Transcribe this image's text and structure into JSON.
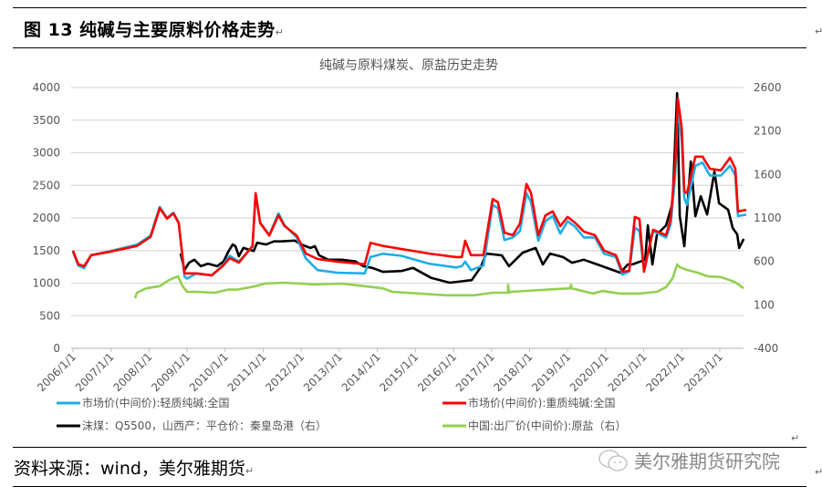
{
  "header": {
    "figure_title": "图 13  纯碱与主要原料价格走势"
  },
  "footer": {
    "source": "资料来源：wind，美尔雅期货",
    "watermark": "美尔雅期货研究院"
  },
  "colors": {
    "light": "#1FADE6",
    "heavy": "#FF0000",
    "coal": "#000000",
    "salt": "#92D050",
    "grid": "#D9D9D9"
  },
  "chart_data": {
    "type": "line",
    "title": "纯碱与原料煤炭、原盐历史走势",
    "xlabel": "",
    "ylabel": "",
    "y2label": "",
    "x_ticks": [
      "2006/1/1",
      "2007/1/1",
      "2008/1/1",
      "2009/1/1",
      "2010/1/1",
      "2011/1/1",
      "2012/1/1",
      "2013/1/1",
      "2014/1/1",
      "2015/1/1",
      "2016/1/1",
      "2017/1/1",
      "2018/1/1",
      "2019/1/1",
      "2020/1/1",
      "2021/1/1",
      "2022/1/1",
      "2023/1/1"
    ],
    "xlim": [
      2006,
      2023.7
    ],
    "ylim": [
      0,
      4000
    ],
    "y_ticks": [
      0,
      500,
      1000,
      1500,
      2000,
      2500,
      3000,
      3500,
      4000
    ],
    "y2lim": [
      -400,
      2600
    ],
    "y2_ticks": [
      -400,
      100,
      600,
      1100,
      1600,
      2100,
      2600
    ],
    "grid": true,
    "legend_position": "bottom",
    "series": [
      {
        "name": "市场价(中间价):轻质纯碱:全国",
        "axis": "left",
        "color": "#1FADE6",
        "x": [
          2006.0,
          2006.14,
          2006.29,
          2006.48,
          2006.96,
          2007.68,
          2008.04,
          2008.28,
          2008.47,
          2008.64,
          2008.78,
          2008.93,
          2009.0,
          2009.24,
          2009.65,
          2009.93,
          2010.12,
          2010.36,
          2010.72,
          2010.8,
          2010.92,
          2011.16,
          2011.4,
          2011.56,
          2011.88,
          2012.12,
          2012.43,
          2012.95,
          2013.67,
          2013.82,
          2014.15,
          2014.63,
          2015.35,
          2016.07,
          2016.22,
          2016.31,
          2016.46,
          2016.79,
          2017.03,
          2017.17,
          2017.34,
          2017.56,
          2017.75,
          2017.92,
          2018.04,
          2018.23,
          2018.42,
          2018.61,
          2018.81,
          2019.0,
          2019.19,
          2019.43,
          2019.72,
          2019.96,
          2020.27,
          2020.44,
          2020.62,
          2020.77,
          2020.89,
          2021.01,
          2021.25,
          2021.59,
          2021.71,
          2021.83,
          2021.9,
          2022.0,
          2022.07,
          2022.14,
          2022.36,
          2022.55,
          2022.74,
          2023.03,
          2023.27,
          2023.41,
          2023.48,
          2023.7
        ],
        "y": [
          1480,
          1270,
          1230,
          1430,
          1490,
          1590,
          1730,
          2170,
          2000,
          2080,
          1930,
          1100,
          1070,
          1150,
          1120,
          1270,
          1420,
          1330,
          1560,
          2370,
          1930,
          1740,
          2070,
          1890,
          1700,
          1380,
          1200,
          1160,
          1150,
          1400,
          1450,
          1420,
          1300,
          1240,
          1260,
          1330,
          1200,
          1270,
          2200,
          2150,
          1660,
          1700,
          1800,
          2380,
          2240,
          1650,
          1950,
          2030,
          1760,
          1950,
          1870,
          1700,
          1700,
          1450,
          1400,
          1130,
          1180,
          1850,
          1800,
          1200,
          1800,
          1700,
          1900,
          2650,
          3700,
          3200,
          2300,
          2200,
          2800,
          2850,
          2650,
          2650,
          2800,
          2650,
          2030,
          2050
        ]
      },
      {
        "name": "市场价(中间价):重质纯碱:全国",
        "axis": "left",
        "color": "#FF0000",
        "x": [
          2006.0,
          2006.14,
          2006.29,
          2006.48,
          2006.96,
          2007.68,
          2008.04,
          2008.28,
          2008.47,
          2008.64,
          2008.78,
          2008.93,
          2009.24,
          2009.65,
          2009.93,
          2010.12,
          2010.36,
          2010.72,
          2010.8,
          2010.92,
          2011.16,
          2011.4,
          2011.56,
          2011.88,
          2012.12,
          2012.43,
          2012.95,
          2013.67,
          2013.82,
          2014.15,
          2014.63,
          2015.35,
          2016.07,
          2016.22,
          2016.31,
          2016.46,
          2016.79,
          2017.03,
          2017.17,
          2017.34,
          2017.56,
          2017.75,
          2017.92,
          2018.04,
          2018.23,
          2018.42,
          2018.61,
          2018.81,
          2019.0,
          2019.19,
          2019.43,
          2019.72,
          2019.96,
          2020.27,
          2020.44,
          2020.62,
          2020.77,
          2020.89,
          2021.01,
          2021.25,
          2021.59,
          2021.71,
          2021.83,
          2021.9,
          2022.0,
          2022.07,
          2022.14,
          2022.36,
          2022.55,
          2022.74,
          2023.03,
          2023.27,
          2023.41,
          2023.48,
          2023.7
        ],
        "y": [
          1500,
          1290,
          1260,
          1430,
          1480,
          1570,
          1710,
          2150,
          1990,
          2070,
          1920,
          1150,
          1150,
          1120,
          1260,
          1385,
          1315,
          1570,
          2380,
          1920,
          1730,
          2040,
          1875,
          1730,
          1455,
          1370,
          1330,
          1290,
          1620,
          1570,
          1525,
          1455,
          1400,
          1400,
          1650,
          1430,
          1430,
          2290,
          2240,
          1775,
          1735,
          1915,
          2520,
          2380,
          1735,
          2040,
          2100,
          1875,
          2015,
          1930,
          1790,
          1735,
          1500,
          1430,
          1175,
          1190,
          2015,
          1985,
          1175,
          1820,
          1735,
          1985,
          2825,
          3830,
          3385,
          2405,
          2380,
          2940,
          2940,
          2755,
          2730,
          2925,
          2755,
          2100,
          2125
        ]
      },
      {
        "name": "动力煤：Q5500，山西产：平仓价：秦皇岛港（右）",
        "legend_label": "沫煤：Q5500，山西产：平仓价：秦皇岛港（右）",
        "axis": "right",
        "color": "#000000",
        "x": [
          2008.83,
          2008.93,
          2009.05,
          2009.19,
          2009.36,
          2009.55,
          2009.79,
          2009.96,
          2010.08,
          2010.2,
          2010.27,
          2010.36,
          2010.48,
          2010.75,
          2010.84,
          2011.08,
          2011.28,
          2011.47,
          2011.83,
          2012.0,
          2012.24,
          2012.36,
          2012.47,
          2012.71,
          2013.07,
          2013.43,
          2013.63,
          2013.87,
          2014.15,
          2014.63,
          2014.94,
          2015.42,
          2015.9,
          2016.48,
          2016.72,
          2016.86,
          2017.27,
          2017.46,
          2017.82,
          2018.16,
          2018.35,
          2018.54,
          2018.88,
          2019.12,
          2019.43,
          2019.91,
          2020.39,
          2020.58,
          2020.7,
          2021.04,
          2021.11,
          2021.23,
          2021.35,
          2021.59,
          2021.76,
          2021.88,
          2021.95,
          2022.07,
          2022.24,
          2022.36,
          2022.5,
          2022.67,
          2022.86,
          2022.98,
          2023.22,
          2023.34,
          2023.46,
          2023.51,
          2023.63
        ],
        "y": [
          690,
          500,
          585,
          620,
          545,
          575,
          545,
          600,
          710,
          795,
          775,
          660,
          755,
          720,
          815,
          795,
          830,
          830,
          840,
          795,
          755,
          775,
          670,
          620,
          620,
          600,
          545,
          525,
          480,
          490,
          525,
          410,
          355,
          385,
          535,
          690,
          670,
          545,
          700,
          755,
          565,
          690,
          650,
          585,
          620,
          545,
          470,
          565,
          565,
          620,
          1015,
          565,
          910,
          1015,
          1270,
          2535,
          1120,
          775,
          1750,
          1120,
          1350,
          1140,
          1635,
          1270,
          1195,
          985,
          910,
          755,
          860
        ]
      },
      {
        "name": "中国:出厂价(中间价):原盐（右）",
        "axis": "right",
        "color": "#92D050",
        "x": [
          2007.63,
          2007.68,
          2007.92,
          2008.28,
          2008.52,
          2008.76,
          2008.88,
          2009.0,
          2009.24,
          2009.72,
          2010.08,
          2010.32,
          2010.8,
          2011.04,
          2011.52,
          2012.0,
          2012.36,
          2013.07,
          2013.67,
          2014.15,
          2014.39,
          2015.11,
          2015.83,
          2016.55,
          2017.03,
          2017.43,
          2017.44,
          2017.46,
          2017.51,
          2018.47,
          2019.07,
          2019.09,
          2019.11,
          2019.67,
          2019.91,
          2020.39,
          2020.87,
          2021.35,
          2021.59,
          2021.76,
          2021.88,
          2021.95,
          2022.12,
          2022.43,
          2022.67,
          2023.03,
          2023.39,
          2023.63
        ],
        "y": [
          177,
          240,
          290,
          315,
          385,
          430,
          315,
          250,
          250,
          240,
          275,
          275,
          315,
          345,
          355,
          345,
          335,
          345,
          315,
          290,
          250,
          230,
          210,
          210,
          240,
          240,
          330,
          240,
          250,
          275,
          290,
          330,
          290,
          230,
          260,
          230,
          230,
          250,
          305,
          405,
          565,
          535,
          505,
          470,
          430,
          420,
          365,
          290
        ]
      }
    ]
  }
}
